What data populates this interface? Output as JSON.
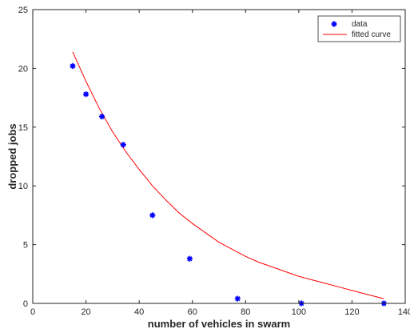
{
  "chart_data": {
    "type": "scatter",
    "title": "",
    "xlabel": "number of vehicles in swarm",
    "ylabel": "dropped jobs",
    "xlim": [
      0,
      140
    ],
    "ylim": [
      0,
      25
    ],
    "xticks": [
      0,
      20,
      40,
      60,
      80,
      100,
      120,
      140
    ],
    "yticks": [
      0,
      5,
      10,
      15,
      20,
      25
    ],
    "grid": false,
    "legend_position": "top-right",
    "series": [
      {
        "name": "data",
        "kind": "markers",
        "marker": "asterisk",
        "color": "#0000ff",
        "x": [
          15,
          20,
          26,
          34,
          45,
          59,
          77,
          101,
          132
        ],
        "y": [
          20.2,
          17.8,
          15.9,
          13.5,
          7.5,
          3.8,
          0.4,
          0.0,
          0.0
        ]
      },
      {
        "name": "fitted curve",
        "kind": "line",
        "color": "#ff0000",
        "x": [
          15,
          20,
          25,
          30,
          35,
          40,
          45,
          50,
          55,
          60,
          65,
          70,
          75,
          80,
          85,
          90,
          95,
          100,
          105,
          110,
          115,
          120,
          125,
          132
        ],
        "y": [
          21.4,
          18.9,
          16.6,
          14.6,
          12.9,
          11.4,
          10.0,
          8.8,
          7.7,
          6.8,
          6.0,
          5.2,
          4.6,
          4.0,
          3.5,
          3.1,
          2.7,
          2.3,
          2.0,
          1.7,
          1.4,
          1.1,
          0.8,
          0.4
        ]
      }
    ]
  }
}
